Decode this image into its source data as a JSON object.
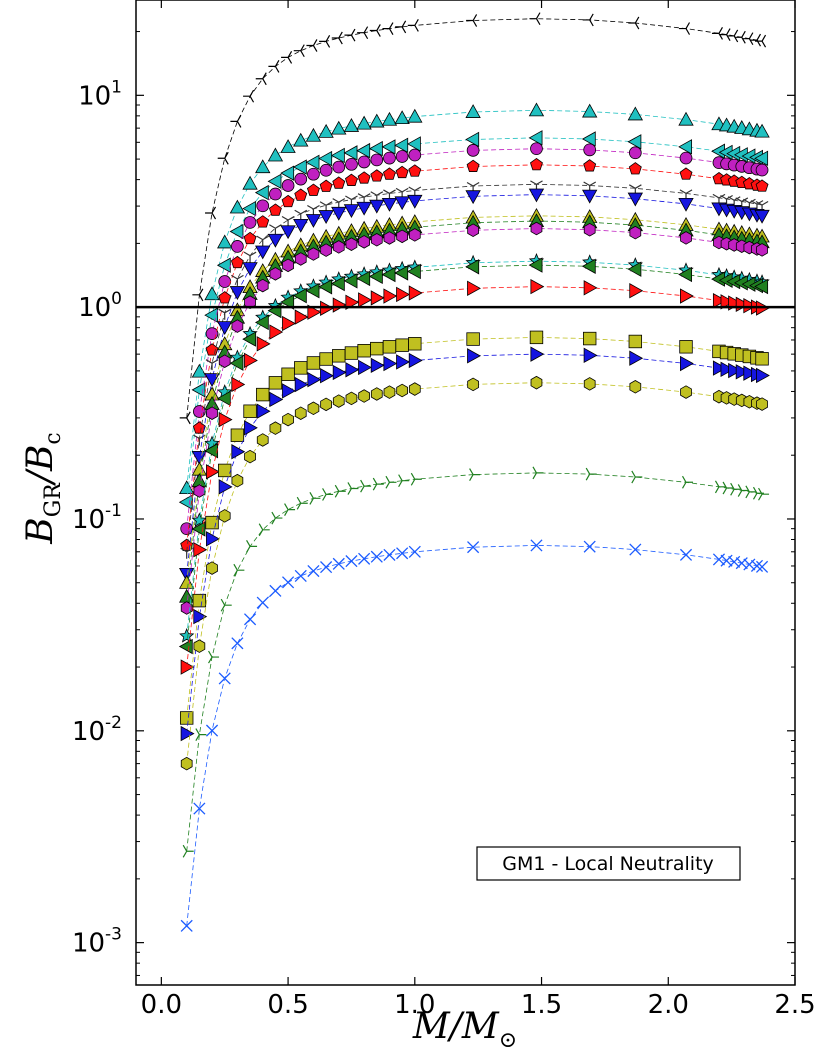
{
  "chart_data": {
    "type": "line",
    "xlim": [
      -0.1,
      2.5
    ],
    "ylim_log10": [
      -3.2,
      1.45
    ],
    "x_ticks": [
      0.0,
      0.5,
      1.0,
      1.5,
      2.0,
      2.5
    ],
    "x_tick_labels": [
      "0.0",
      "0.5",
      "1.0",
      "1.5",
      "2.0",
      "2.5"
    ],
    "y_ticks_log10": [
      -3,
      -2,
      -1,
      0,
      1
    ],
    "y_tick_bases": [
      "10",
      "10",
      "10",
      "10",
      "10"
    ],
    "y_tick_exponents": [
      "-3",
      "-2",
      "-1",
      "0",
      "1"
    ],
    "xlabel": {
      "main": "M/M",
      "sub": "⊙"
    },
    "ylabel": {
      "b1": "B",
      "s1": "GR",
      "slash": "/",
      "b2": "B",
      "s2": "c"
    },
    "reference_line": {
      "y": 1.0,
      "color": "#000000"
    },
    "annotation": "GM1 - Local Neutrality",
    "x": [
      0.1,
      0.15,
      0.2,
      0.25,
      0.3,
      0.35,
      0.4,
      0.45,
      0.5,
      0.55,
      0.6,
      0.65,
      0.7,
      0.75,
      0.8,
      0.85,
      0.9,
      0.95,
      1.0,
      1.23,
      1.48,
      1.69,
      1.87,
      2.07,
      2.2,
      2.23,
      2.26,
      2.29,
      2.32,
      2.35,
      2.37
    ],
    "series": [
      {
        "name": "tri_down_black",
        "marker": "tri_left",
        "color": "#000000",
        "peak": 23.0,
        "y_at_0_1": 0.3
      },
      {
        "name": "cyan_up_triangle",
        "marker": "triangle_up",
        "color": "#20c0c0",
        "peak": 8.5,
        "y_at_0_1": 0.14
      },
      {
        "name": "cyan_left_triangle",
        "marker": "triangle_left",
        "color": "#20c0c0",
        "peak": 6.3,
        "y_at_0_1": 0.12
      },
      {
        "name": "magenta_circle",
        "marker": "circle",
        "color": "#c020c0",
        "peak": 5.6,
        "y_at_0_1": 0.09
      },
      {
        "name": "red_pentagon",
        "marker": "pentagon",
        "color": "#ff1010",
        "peak": 4.7,
        "y_at_0_1": 0.075
      },
      {
        "name": "black_tri_down_dark",
        "marker": "tri_down",
        "color": "#333333",
        "peak": 3.8,
        "y_at_0_1": 0.07
      },
      {
        "name": "blue_down_triangle",
        "marker": "triangle_down",
        "color": "#1515e0",
        "peak": 3.4,
        "y_at_0_1": 0.055
      },
      {
        "name": "yellow_up_triangle",
        "marker": "triangle_up",
        "color": "#c0c020",
        "peak": 2.7,
        "y_at_0_1": 0.05
      },
      {
        "name": "green_up_triangle",
        "marker": "triangle_up",
        "color": "#208020",
        "peak": 2.55,
        "y_at_0_1": 0.043
      },
      {
        "name": "magenta_hexagon",
        "marker": "hexagon",
        "color": "#c020c0",
        "peak": 2.35,
        "y_at_0_1": 0.038
      },
      {
        "name": "cyan_star",
        "marker": "star",
        "color": "#20c0c0",
        "peak": 1.65,
        "y_at_0_1": 0.028
      },
      {
        "name": "green_left_triangle",
        "marker": "triangle_left",
        "color": "#208020",
        "peak": 1.58,
        "y_at_0_1": 0.025
      },
      {
        "name": "red_right_triangle",
        "marker": "triangle_right",
        "color": "#ff1010",
        "peak": 1.25,
        "y_at_0_1": 0.02
      },
      {
        "name": "yellow_square",
        "marker": "square",
        "color": "#c0c020",
        "peak": 0.72,
        "y_at_0_1": 0.0115
      },
      {
        "name": "blue_right_triangle",
        "marker": "triangle_right",
        "color": "#1515e0",
        "peak": 0.6,
        "y_at_0_1": 0.0097
      },
      {
        "name": "yellow_hexagon",
        "marker": "hexagon",
        "color": "#c0c020",
        "peak": 0.44,
        "y_at_0_1": 0.007
      },
      {
        "name": "green_tri_right",
        "marker": "tri_right",
        "color": "#208020",
        "peak": 0.165,
        "y_at_0_1": 0.0027
      },
      {
        "name": "blue_x",
        "marker": "x",
        "color": "#1c5cff",
        "peak": 0.075,
        "y_at_0_1": 0.0012
      }
    ]
  }
}
